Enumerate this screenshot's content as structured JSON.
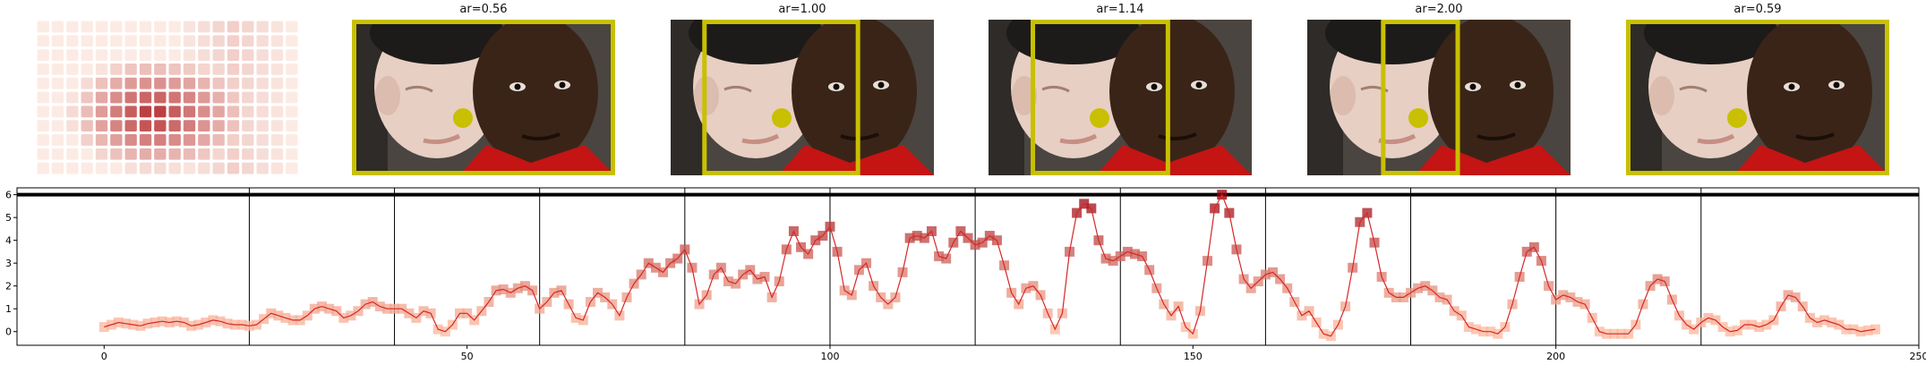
{
  "panels": [
    {
      "title": ""
    },
    {
      "title": "ar=0.56"
    },
    {
      "title": "ar=1.00"
    },
    {
      "title": "ar=1.14"
    },
    {
      "title": "ar=2.00"
    },
    {
      "title": "ar=0.59"
    }
  ],
  "crops": [
    {
      "aspect_ratio": 0.56,
      "x0": 0.0,
      "x1": 1.0
    },
    {
      "aspect_ratio": 1.0,
      "x0": 0.12,
      "x1": 0.72
    },
    {
      "aspect_ratio": 1.14,
      "x0": 0.16,
      "x1": 0.69
    },
    {
      "aspect_ratio": 2.0,
      "x0": 0.28,
      "x1": 0.58
    },
    {
      "aspect_ratio": 0.59,
      "x0": 0.0,
      "x1": 1.0
    }
  ],
  "colors": {
    "crop_box": "#c8c000",
    "saliency_dot": "#c8c000",
    "line": "#d62728",
    "marker_low": "#fcbba1",
    "marker_high": "#99000d",
    "top_bar": "#000000"
  },
  "chart_data": {
    "type": "line",
    "xlim": [
      -12,
      250
    ],
    "ylim": [
      -0.6,
      6.3
    ],
    "xticks": [
      0,
      50,
      100,
      150,
      200,
      250
    ],
    "yticks": [
      0,
      1,
      2,
      3,
      4,
      5,
      6
    ],
    "vlines": [
      20,
      40,
      60,
      80,
      100,
      120,
      140,
      160,
      180,
      200,
      220
    ],
    "hline": 6.0,
    "x_start": 0,
    "values": [
      0.2,
      0.3,
      0.4,
      0.35,
      0.3,
      0.25,
      0.35,
      0.4,
      0.45,
      0.4,
      0.45,
      0.4,
      0.25,
      0.3,
      0.4,
      0.5,
      0.45,
      0.35,
      0.3,
      0.3,
      0.25,
      0.3,
      0.55,
      0.8,
      0.7,
      0.6,
      0.5,
      0.5,
      0.7,
      1.0,
      1.1,
      1.0,
      0.9,
      0.6,
      0.7,
      0.9,
      1.2,
      1.3,
      1.1,
      1.0,
      1.0,
      1.0,
      0.8,
      0.6,
      0.9,
      0.8,
      0.1,
      0.0,
      0.3,
      0.8,
      0.8,
      0.5,
      0.9,
      1.3,
      1.8,
      1.85,
      1.7,
      1.9,
      2.0,
      1.8,
      1.0,
      1.3,
      1.7,
      1.8,
      1.2,
      0.6,
      0.5,
      1.3,
      1.7,
      1.5,
      1.2,
      0.7,
      1.5,
      2.1,
      2.5,
      3.0,
      2.8,
      2.6,
      3.0,
      3.2,
      3.6,
      2.8,
      1.2,
      1.6,
      2.5,
      2.8,
      2.2,
      2.1,
      2.5,
      2.7,
      2.3,
      2.4,
      1.5,
      2.2,
      3.6,
      4.4,
      3.7,
      3.4,
      4.0,
      4.2,
      4.6,
      3.5,
      1.8,
      1.6,
      2.7,
      3.0,
      2.0,
      1.5,
      1.2,
      1.5,
      2.6,
      4.1,
      4.2,
      4.1,
      4.4,
      3.3,
      3.2,
      3.9,
      4.4,
      4.1,
      3.8,
      3.9,
      4.2,
      4.0,
      2.9,
      1.7,
      1.2,
      1.9,
      2.0,
      1.6,
      0.8,
      0.1,
      0.8,
      3.5,
      5.2,
      5.6,
      5.4,
      4.0,
      3.2,
      3.1,
      3.3,
      3.5,
      3.4,
      3.3,
      2.7,
      1.9,
      1.2,
      0.7,
      1.1,
      0.2,
      -0.1,
      0.9,
      3.1,
      5.4,
      6.0,
      5.2,
      3.6,
      2.3,
      1.9,
      2.2,
      2.5,
      2.6,
      2.3,
      1.9,
      1.3,
      0.7,
      0.9,
      0.4,
      -0.1,
      -0.2,
      0.3,
      1.1,
      2.8,
      4.8,
      5.2,
      3.9,
      2.4,
      1.7,
      1.5,
      1.5,
      1.7,
      1.9,
      2.0,
      1.8,
      1.5,
      1.4,
      0.9,
      0.7,
      0.2,
      0.1,
      0.0,
      0.0,
      -0.1,
      0.2,
      1.2,
      2.4,
      3.5,
      3.7,
      3.1,
      2.0,
      1.4,
      1.6,
      1.5,
      1.3,
      1.2,
      0.6,
      0.0,
      -0.1,
      -0.1,
      -0.1,
      -0.1,
      0.3,
      1.2,
      2.0,
      2.3,
      2.2,
      1.4,
      0.7,
      0.3,
      0.1,
      0.4,
      0.6,
      0.5,
      0.2,
      0.0,
      0.05,
      0.3,
      0.3,
      0.2,
      0.3,
      0.5,
      1.1,
      1.6,
      1.5,
      1.1,
      0.6,
      0.4,
      0.5,
      0.4,
      0.3,
      0.1,
      0.1,
      0.0,
      0.05,
      0.1
    ]
  }
}
